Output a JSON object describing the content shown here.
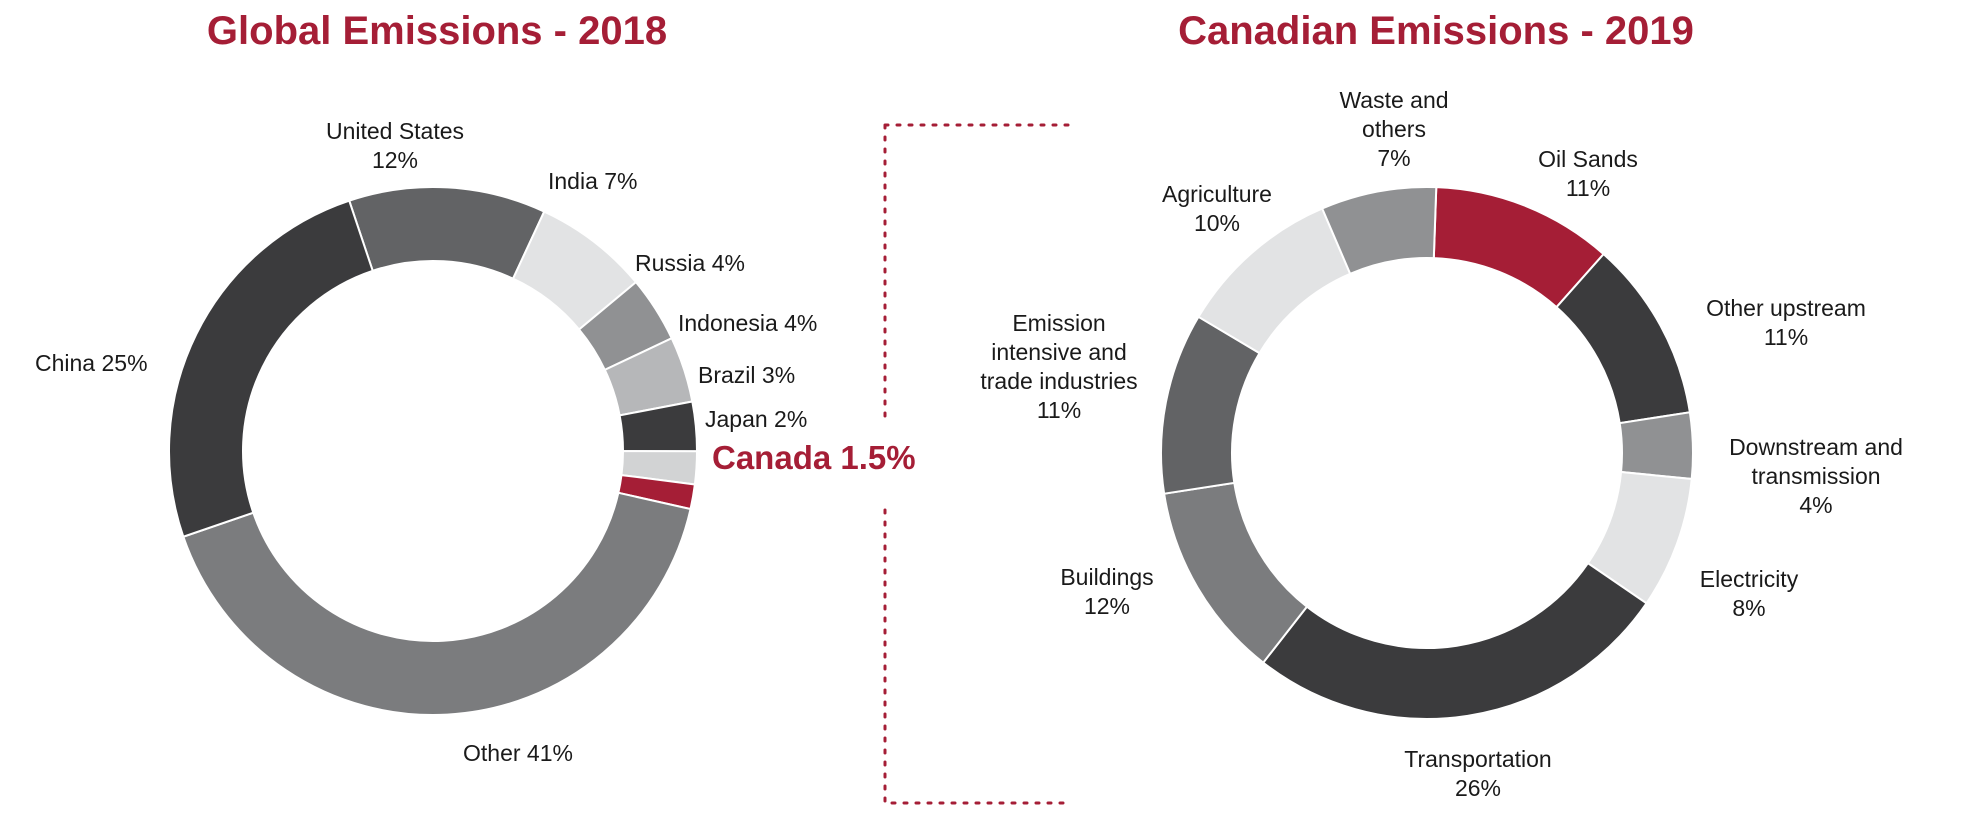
{
  "colors": {
    "accent": "#a51e36",
    "dark": "#3b3b3d",
    "mid_dark": "#626365",
    "mid": "#7b7c7e",
    "mid_light": "#909193",
    "light": "#b6b7b9",
    "very_light": "#e2e3e4",
    "connector": "#a51e36"
  },
  "chart_data": [
    {
      "type": "pie",
      "variant": "donut",
      "title": "Global Emissions - 2018",
      "slices": [
        {
          "name": "United States",
          "value": 12,
          "label_lines": [
            "United States",
            "12%"
          ],
          "color": "#626365"
        },
        {
          "name": "India",
          "value": 7,
          "label_lines": [
            "India 7%"
          ],
          "color": "#e2e3e4"
        },
        {
          "name": "Russia",
          "value": 4,
          "label_lines": [
            "Russia 4%"
          ],
          "color": "#909193"
        },
        {
          "name": "Indonesia",
          "value": 4,
          "label_lines": [
            "Indonesia 4%"
          ],
          "color": "#b6b7b9"
        },
        {
          "name": "Brazil",
          "value": 3,
          "label_lines": [
            "Brazil 3%"
          ],
          "color": "#3b3b3d"
        },
        {
          "name": "Japan",
          "value": 2,
          "label_lines": [
            "Japan 2%"
          ],
          "color": "#d2d3d4"
        },
        {
          "name": "Canada",
          "value": 1.5,
          "label_lines": [
            "Canada 1.5%"
          ],
          "color": "#a51e36",
          "highlight": true
        },
        {
          "name": "Other",
          "value": 41,
          "label_lines": [
            "Other 41%"
          ],
          "color": "#7b7c7e"
        },
        {
          "name": "China",
          "value": 25,
          "label_lines": [
            "China 25%"
          ],
          "color": "#3b3b3d"
        }
      ]
    },
    {
      "type": "pie",
      "variant": "donut",
      "title": "Canadian Emissions - 2019",
      "slices": [
        {
          "name": "Oil Sands",
          "value": 11,
          "label_lines": [
            "Oil Sands",
            "11%"
          ],
          "color": "#a51e36"
        },
        {
          "name": "Other upstream",
          "value": 11,
          "label_lines": [
            "Other upstream",
            "11%"
          ],
          "color": "#3b3b3d"
        },
        {
          "name": "Downstream and transmission",
          "value": 4,
          "label_lines": [
            "Downstream and",
            "transmission",
            "4%"
          ],
          "color": "#909193"
        },
        {
          "name": "Electricity",
          "value": 8,
          "label_lines": [
            "Electricity",
            "8%"
          ],
          "color": "#e2e3e4"
        },
        {
          "name": "Transportation",
          "value": 26,
          "label_lines": [
            "Transportation",
            "26%"
          ],
          "color": "#3b3b3d"
        },
        {
          "name": "Buildings",
          "value": 12,
          "label_lines": [
            "Buildings",
            "12%"
          ],
          "color": "#7b7c7e"
        },
        {
          "name": "Emission intensive and trade industries",
          "value": 11,
          "label_lines": [
            "Emission",
            "intensive and",
            "trade industries",
            "11%"
          ],
          "color": "#626365"
        },
        {
          "name": "Agriculture",
          "value": 10,
          "label_lines": [
            "Agriculture",
            "10%"
          ],
          "color": "#e2e3e4"
        },
        {
          "name": "Waste and others",
          "value": 7,
          "label_lines": [
            "Waste and",
            "others",
            "7%"
          ],
          "color": "#909193"
        }
      ]
    }
  ]
}
